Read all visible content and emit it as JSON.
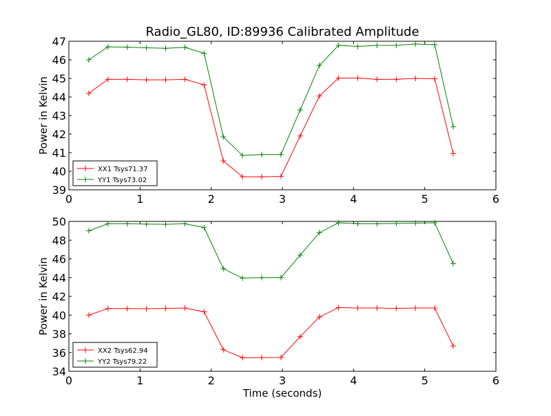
{
  "colors": {
    "series_a": "#ff0000",
    "series_b": "#008000",
    "axes": "#000000",
    "background": "#ffffff"
  },
  "chart_data": [
    {
      "type": "line",
      "title": "Radio_GL80, ID:89936 Calibrated Amplitude",
      "xlabel": "",
      "ylabel": "Power in Kelvin",
      "xlim": [
        0,
        6
      ],
      "ylim": [
        39,
        47
      ],
      "xticks": [
        "0",
        "1",
        "2",
        "3",
        "4",
        "5",
        "6"
      ],
      "yticks": [
        "39",
        "40",
        "41",
        "42",
        "43",
        "44",
        "45",
        "46",
        "47"
      ],
      "grid": false,
      "legend_position": "lower-left",
      "x": [
        0.28,
        0.55,
        0.82,
        1.09,
        1.36,
        1.63,
        1.9,
        2.17,
        2.44,
        2.71,
        2.98,
        3.25,
        3.52,
        3.79,
        4.06,
        4.33,
        4.6,
        4.87,
        5.14,
        5.4
      ],
      "series": [
        {
          "name": "XX1 Tsys71.37",
          "color": "#ff0000",
          "values": [
            44.2,
            44.95,
            44.95,
            44.92,
            44.92,
            44.95,
            44.65,
            40.55,
            39.7,
            39.7,
            39.72,
            41.9,
            44.05,
            45.02,
            45.02,
            44.95,
            44.95,
            45.0,
            44.98,
            40.95
          ]
        },
        {
          "name": "YY1 Tsys73.02",
          "color": "#008000",
          "values": [
            46.0,
            46.7,
            46.68,
            46.65,
            46.62,
            46.67,
            46.35,
            41.85,
            40.85,
            40.9,
            40.9,
            43.3,
            45.7,
            46.78,
            46.72,
            46.78,
            46.78,
            46.85,
            46.82,
            42.4
          ]
        }
      ]
    },
    {
      "type": "line",
      "title": "",
      "xlabel": "Time (seconds)",
      "ylabel": "Power in Kelvin",
      "xlim": [
        0,
        6
      ],
      "ylim": [
        34,
        50
      ],
      "xticks": [
        "0",
        "1",
        "2",
        "3",
        "4",
        "5",
        "6"
      ],
      "yticks": [
        "34",
        "36",
        "38",
        "40",
        "42",
        "44",
        "46",
        "48",
        "50"
      ],
      "grid": false,
      "legend_position": "lower-left",
      "x": [
        0.28,
        0.55,
        0.82,
        1.09,
        1.36,
        1.63,
        1.9,
        2.17,
        2.44,
        2.71,
        2.98,
        3.25,
        3.52,
        3.79,
        4.06,
        4.33,
        4.6,
        4.87,
        5.14,
        5.4
      ],
      "series": [
        {
          "name": "XX2 Tsys62.94",
          "color": "#ff0000",
          "values": [
            40.0,
            40.7,
            40.7,
            40.68,
            40.72,
            40.75,
            40.35,
            36.3,
            35.45,
            35.47,
            35.48,
            37.7,
            39.8,
            40.8,
            40.75,
            40.75,
            40.72,
            40.75,
            40.75,
            36.7
          ]
        },
        {
          "name": "YY2 Tsys79.22",
          "color": "#008000",
          "values": [
            49.0,
            49.75,
            49.75,
            49.72,
            49.7,
            49.75,
            49.35,
            44.95,
            43.95,
            44.0,
            44.0,
            46.4,
            48.8,
            49.85,
            49.75,
            49.75,
            49.78,
            49.82,
            49.85,
            45.5
          ]
        }
      ]
    }
  ]
}
